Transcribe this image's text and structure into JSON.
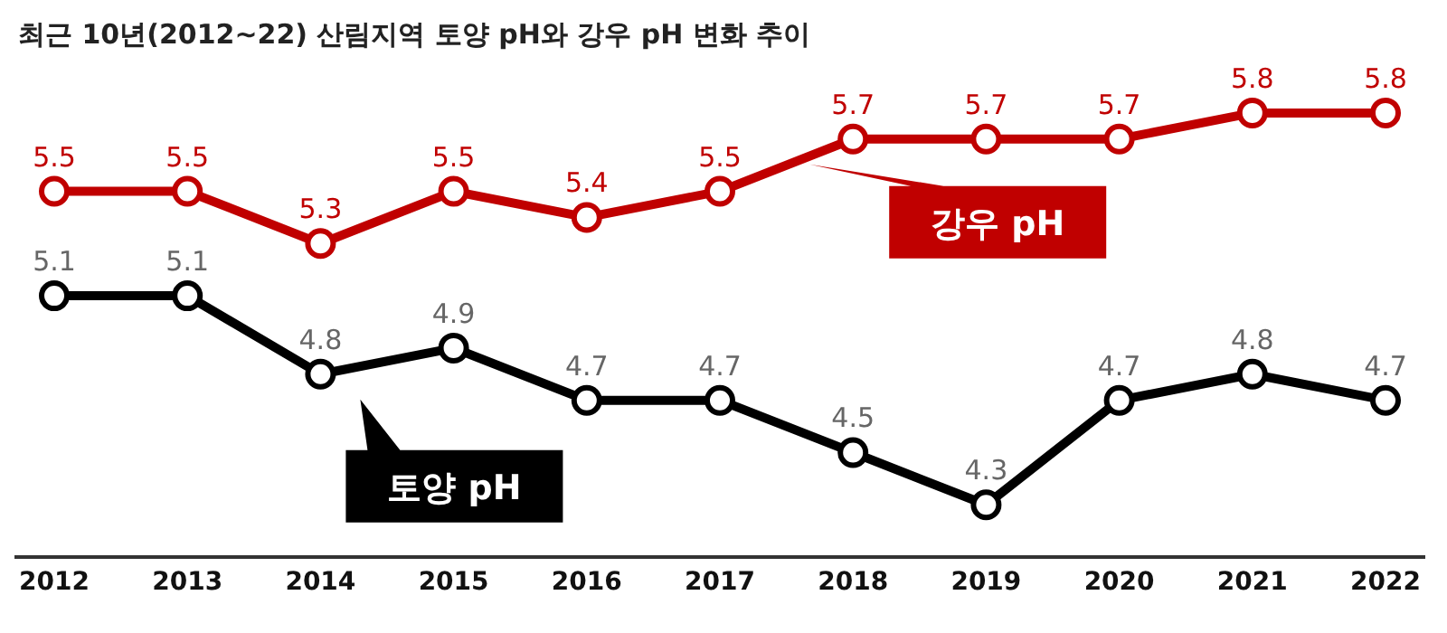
{
  "chart_data": {
    "type": "line",
    "title": "최근 10년(2012~22) 산림지역 토양 pH와 강우 pH 변화 추이",
    "categories": [
      "2012",
      "2013",
      "2014",
      "2015",
      "2016",
      "2017",
      "2018",
      "2019",
      "2020",
      "2021",
      "2022"
    ],
    "series": [
      {
        "name": "강우 pH",
        "color": "#c00000",
        "values": [
          5.5,
          5.5,
          5.3,
          5.5,
          5.4,
          5.5,
          5.7,
          5.7,
          5.7,
          5.8,
          5.8
        ]
      },
      {
        "name": "토양 pH",
        "color": "#000000",
        "values": [
          5.1,
          5.1,
          4.8,
          4.9,
          4.7,
          4.7,
          4.5,
          4.3,
          4.7,
          4.8,
          4.7
        ]
      }
    ],
    "data_labels": true,
    "marker": "circle",
    "line_style": "solid"
  }
}
